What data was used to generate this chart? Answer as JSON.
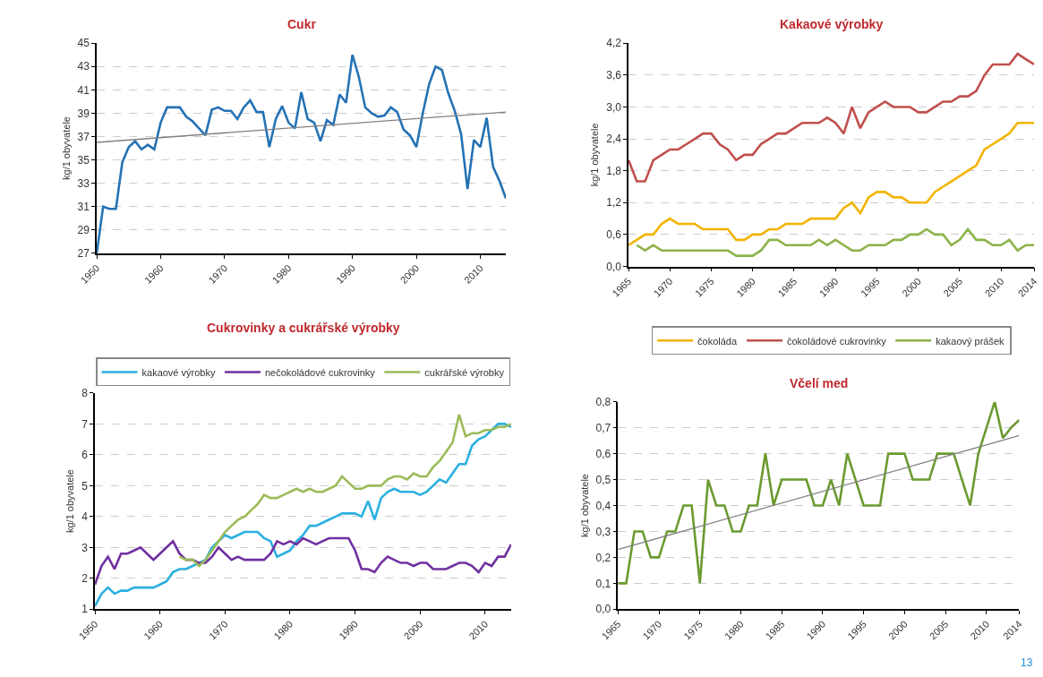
{
  "chart_data": [
    {
      "type": "line",
      "title": "Cukr",
      "ylabel": "kg/1 obyvatele",
      "xlim": [
        1950,
        2014
      ],
      "xticks": [
        1950,
        1960,
        1970,
        1980,
        1990,
        2000,
        2010
      ],
      "ylim": [
        27,
        45
      ],
      "yticks": [
        27,
        29,
        31,
        33,
        35,
        37,
        39,
        41,
        43,
        45
      ],
      "grid": "y",
      "legend": false,
      "marker": "none",
      "line_style": "solid",
      "x": [
        1950,
        1951,
        1952,
        1953,
        1954,
        1955,
        1956,
        1957,
        1958,
        1959,
        1960,
        1961,
        1962,
        1963,
        1964,
        1965,
        1966,
        1967,
        1968,
        1969,
        1970,
        1971,
        1972,
        1973,
        1974,
        1975,
        1976,
        1977,
        1978,
        1979,
        1980,
        1981,
        1982,
        1983,
        1984,
        1985,
        1986,
        1987,
        1988,
        1989,
        1990,
        1991,
        1992,
        1993,
        1994,
        1995,
        1996,
        1997,
        1998,
        1999,
        2000,
        2001,
        2002,
        2003,
        2004,
        2005,
        2006,
        2007,
        2008,
        2009,
        2010,
        2011,
        2012,
        2013,
        2014
      ],
      "series": [
        {
          "color": "#2472b5",
          "values": [
            27,
            31,
            30.8,
            30.8,
            34.8,
            36.1,
            36.6,
            35.9,
            36.3,
            35.9,
            38.2,
            39.5,
            39.5,
            39.5,
            38.7,
            38.3,
            37.7,
            37.1,
            39.3,
            39.5,
            39.2,
            39.2,
            38.5,
            39.5,
            40.1,
            39.1,
            39.1,
            36.1,
            38.5,
            39.6,
            38.2,
            37.7,
            40.8,
            38.5,
            38.2,
            36.6,
            38.4,
            38.0,
            40.6,
            39.9,
            44.0,
            42.1,
            39.5,
            39.0,
            38.7,
            38.8,
            39.5,
            39.1,
            37.6,
            37.1,
            36.1,
            39.0,
            41.5,
            43.0,
            42.7,
            40.7,
            39.2,
            37.2,
            32.5,
            36.7,
            36.1,
            38.6,
            34.4,
            33.2,
            31.7
          ]
        },
        {
          "type": "line",
          "color": "#808080",
          "x": [
            1950,
            2014
          ],
          "values": [
            36.5,
            39.1
          ]
        }
      ]
    },
    {
      "type": "line",
      "title": "Kakaové výrobky",
      "ylabel": "kg/1 obyvatele",
      "xlim": [
        1965,
        2014
      ],
      "xticks": [
        1965,
        1970,
        1975,
        1980,
        1985,
        1990,
        1995,
        2000,
        2005,
        2010,
        2014
      ],
      "ylim": [
        0,
        4.2
      ],
      "yticks": [
        {
          "value": 0,
          "label": "0,0"
        },
        {
          "value": 0.6,
          "label": "0,6"
        },
        {
          "value": 1.2,
          "label": "1,2"
        },
        {
          "value": 1.8,
          "label": "1,8"
        },
        {
          "value": 2.4,
          "label": "2,4"
        },
        {
          "value": 3.0,
          "label": "3,0"
        },
        {
          "value": 3.6,
          "label": "3,6"
        },
        {
          "value": 4.2,
          "label": "4,2"
        }
      ],
      "grid": "y",
      "legend": "bottom",
      "marker": "none",
      "line_style": "solid",
      "x": [
        1965,
        1966,
        1967,
        1968,
        1969,
        1970,
        1971,
        1972,
        1973,
        1974,
        1975,
        1976,
        1977,
        1978,
        1979,
        1980,
        1981,
        1982,
        1983,
        1984,
        1985,
        1986,
        1987,
        1988,
        1989,
        1990,
        1991,
        1992,
        1993,
        1994,
        1995,
        1996,
        1997,
        1998,
        1999,
        2000,
        2001,
        2002,
        2003,
        2004,
        2005,
        2006,
        2007,
        2008,
        2009,
        2010,
        2011,
        2012,
        2013,
        2014
      ],
      "series": [
        {
          "name": "čokoláda",
          "color": "#f2b400",
          "values": [
            0.4,
            0.5,
            0.6,
            0.6,
            0.8,
            0.9,
            0.8,
            0.8,
            0.8,
            0.7,
            0.7,
            0.7,
            0.7,
            0.5,
            0.5,
            0.6,
            0.6,
            0.7,
            0.7,
            0.8,
            0.8,
            0.8,
            0.9,
            0.9,
            0.9,
            0.9,
            1.1,
            1.2,
            1.0,
            1.3,
            1.4,
            1.4,
            1.3,
            1.3,
            1.2,
            1.2,
            1.2,
            1.4,
            1.5,
            1.6,
            1.7,
            1.8,
            1.9,
            2.2,
            2.3,
            2.4,
            2.5,
            2.7,
            2.7,
            2.7
          ]
        },
        {
          "name": "čokoládové cukrovinky",
          "color": "#c0504d",
          "values": [
            2.0,
            1.6,
            1.6,
            2.0,
            2.1,
            2.2,
            2.2,
            2.3,
            2.4,
            2.5,
            2.5,
            2.3,
            2.2,
            2.0,
            2.1,
            2.1,
            2.3,
            2.4,
            2.5,
            2.5,
            2.6,
            2.7,
            2.7,
            2.7,
            2.8,
            2.7,
            2.5,
            3.0,
            2.6,
            2.9,
            3.0,
            3.1,
            3.0,
            3.0,
            3.0,
            2.9,
            2.9,
            3.0,
            3.1,
            3.1,
            3.2,
            3.2,
            3.3,
            3.6,
            3.8,
            3.8,
            3.8,
            4.0,
            3.9,
            3.8
          ]
        },
        {
          "name": "kakaový prášek",
          "color": "#8db34a",
          "values": [
            null,
            0.4,
            0.3,
            0.4,
            0.3,
            0.3,
            0.3,
            0.3,
            0.3,
            0.3,
            0.3,
            0.3,
            0.3,
            0.2,
            0.2,
            0.2,
            0.3,
            0.5,
            0.5,
            0.4,
            0.4,
            0.4,
            0.4,
            0.5,
            0.4,
            0.5,
            0.4,
            0.3,
            0.3,
            0.4,
            0.4,
            0.4,
            0.5,
            0.5,
            0.6,
            0.6,
            0.7,
            0.6,
            0.6,
            0.4,
            0.5,
            0.7,
            0.5,
            0.5,
            0.4,
            0.4,
            0.5,
            0.3,
            0.4,
            0.4
          ]
        }
      ]
    },
    {
      "type": "line",
      "title": "Cukrovinky a cukrářské výrobky",
      "ylabel": "kg/1 obyvatele",
      "xlim": [
        1950,
        2014
      ],
      "xticks": [
        1950,
        1960,
        1970,
        1980,
        1990,
        2000,
        2010
      ],
      "ylim": [
        1,
        8
      ],
      "yticks": [
        1,
        2,
        3,
        4,
        5,
        6,
        7,
        8
      ],
      "grid": "y",
      "legend": "top",
      "marker": "none",
      "line_style": "solid",
      "x": [
        1950,
        1951,
        1952,
        1953,
        1954,
        1955,
        1956,
        1957,
        1958,
        1959,
        1960,
        1961,
        1962,
        1963,
        1964,
        1965,
        1966,
        1967,
        1968,
        1969,
        1970,
        1971,
        1972,
        1973,
        1974,
        1975,
        1976,
        1977,
        1978,
        1979,
        1980,
        1981,
        1982,
        1983,
        1984,
        1985,
        1986,
        1987,
        1988,
        1989,
        1990,
        1991,
        1992,
        1993,
        1994,
        1995,
        1996,
        1997,
        1998,
        1999,
        2000,
        2001,
        2002,
        2003,
        2004,
        2005,
        2006,
        2007,
        2008,
        2009,
        2010,
        2011,
        2012,
        2013,
        2014
      ],
      "series": [
        {
          "name": "kakaové výrobky",
          "color": "#2ab0e0",
          "values": [
            1.1,
            1.5,
            1.7,
            1.5,
            1.6,
            1.6,
            1.7,
            1.7,
            1.7,
            1.7,
            1.8,
            1.9,
            2.2,
            2.3,
            2.3,
            2.4,
            2.5,
            2.6,
            3.0,
            3.2,
            3.4,
            3.3,
            3.4,
            3.5,
            3.5,
            3.5,
            3.3,
            3.2,
            2.7,
            2.8,
            2.9,
            3.2,
            3.4,
            3.7,
            3.7,
            3.8,
            3.9,
            4.0,
            4.1,
            4.1,
            4.1,
            4.0,
            4.5,
            3.9,
            4.6,
            4.8,
            4.9,
            4.8,
            4.8,
            4.8,
            4.7,
            4.8,
            5.0,
            5.2,
            5.1,
            5.4,
            5.7,
            5.7,
            6.3,
            6.5,
            6.6,
            6.8,
            7.0,
            7.0,
            6.9
          ]
        },
        {
          "name": "nečokoládové cukrovinky",
          "color": "#7030a0",
          "values": [
            1.8,
            2.4,
            2.7,
            2.3,
            2.8,
            2.8,
            2.9,
            3.0,
            2.8,
            2.6,
            2.8,
            3.0,
            3.2,
            2.8,
            2.6,
            2.6,
            2.5,
            2.5,
            2.7,
            3.0,
            2.8,
            2.6,
            2.7,
            2.6,
            2.6,
            2.6,
            2.6,
            2.8,
            3.2,
            3.1,
            3.2,
            3.1,
            3.3,
            3.2,
            3.1,
            3.2,
            3.3,
            3.3,
            3.3,
            3.3,
            2.9,
            2.3,
            2.3,
            2.2,
            2.5,
            2.7,
            2.6,
            2.5,
            2.5,
            2.4,
            2.5,
            2.5,
            2.3,
            2.3,
            2.3,
            2.4,
            2.5,
            2.5,
            2.4,
            2.2,
            2.5,
            2.4,
            2.7,
            2.7,
            3.1
          ]
        },
        {
          "name": "cukrářské výrobky",
          "color": "#9bbb59",
          "values": [
            null,
            null,
            null,
            null,
            null,
            null,
            null,
            null,
            null,
            null,
            null,
            null,
            null,
            2.7,
            2.6,
            2.6,
            2.4,
            2.6,
            2.9,
            3.2,
            3.5,
            3.7,
            3.9,
            4.0,
            4.2,
            4.4,
            4.7,
            4.6,
            4.6,
            4.7,
            4.8,
            4.9,
            4.8,
            4.9,
            4.8,
            4.8,
            4.9,
            5.0,
            5.3,
            5.1,
            4.9,
            4.9,
            5.0,
            5.0,
            5.0,
            5.2,
            5.3,
            5.3,
            5.2,
            5.4,
            5.3,
            5.3,
            5.6,
            5.8,
            6.1,
            6.4,
            7.3,
            6.6,
            6.7,
            6.7,
            6.8,
            6.8,
            6.9,
            6.9,
            7.0
          ]
        }
      ]
    },
    {
      "type": "line",
      "title": "Včelí med",
      "ylabel": "kg/1 obyvatele",
      "xlim": [
        1965,
        2014
      ],
      "xticks": [
        1965,
        1970,
        1975,
        1980,
        1985,
        1990,
        1995,
        2000,
        2005,
        2010,
        2014
      ],
      "ylim": [
        0,
        0.8
      ],
      "yticks": [
        {
          "value": 0,
          "label": "0,0"
        },
        {
          "value": 0.1,
          "label": "0,1"
        },
        {
          "value": 0.2,
          "label": "0,2"
        },
        {
          "value": 0.3,
          "label": "0,3"
        },
        {
          "value": 0.4,
          "label": "0,4"
        },
        {
          "value": 0.5,
          "label": "0,5"
        },
        {
          "value": 0.6,
          "label": "0,6"
        },
        {
          "value": 0.7,
          "label": "0,7"
        },
        {
          "value": 0.8,
          "label": "0,8"
        }
      ],
      "grid": "y",
      "legend": false,
      "marker": "none",
      "line_style": "solid",
      "annotations": [
        "13"
      ],
      "x": [
        1965,
        1966,
        1967,
        1968,
        1969,
        1970,
        1971,
        1972,
        1973,
        1974,
        1975,
        1976,
        1977,
        1978,
        1979,
        1980,
        1981,
        1982,
        1983,
        1984,
        1985,
        1986,
        1987,
        1988,
        1989,
        1990,
        1991,
        1992,
        1993,
        1994,
        1995,
        1996,
        1997,
        1998,
        1999,
        2000,
        2001,
        2002,
        2003,
        2004,
        2005,
        2006,
        2007,
        2008,
        2009,
        2010,
        2011,
        2012,
        2013,
        2014
      ],
      "series": [
        {
          "color": "#6b9a2f",
          "values": [
            0.1,
            0.1,
            0.3,
            0.3,
            0.2,
            0.2,
            0.3,
            0.3,
            0.4,
            0.4,
            0.1,
            0.5,
            0.4,
            0.4,
            0.3,
            0.3,
            0.4,
            0.4,
            0.6,
            0.4,
            0.5,
            0.5,
            0.5,
            0.5,
            0.4,
            0.4,
            0.5,
            0.4,
            0.6,
            0.5,
            0.4,
            0.4,
            0.4,
            0.6,
            0.6,
            0.6,
            0.5,
            0.5,
            0.5,
            0.6,
            0.6,
            0.6,
            0.5,
            0.4,
            0.6,
            0.7,
            0.8,
            0.66,
            0.7,
            0.73
          ]
        },
        {
          "type": "line",
          "color": "#808080",
          "x": [
            1965,
            2014
          ],
          "values": [
            0.23,
            0.67
          ]
        }
      ]
    }
  ]
}
